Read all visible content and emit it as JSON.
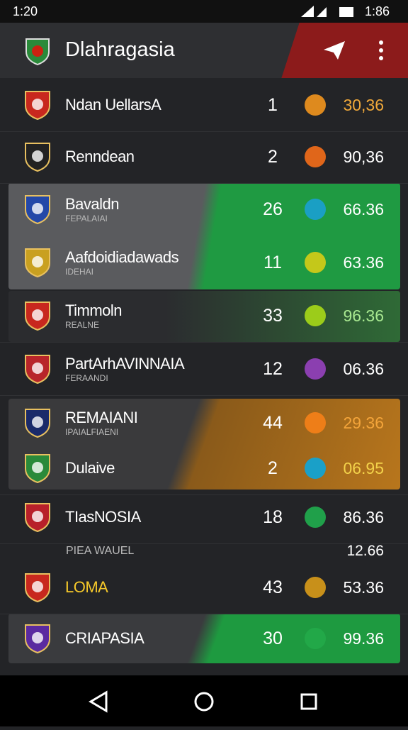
{
  "status_bar": {
    "time_left": "1:20",
    "time_right": "1:86"
  },
  "app_bar": {
    "title": "Dlahragasia"
  },
  "rows": [
    {
      "name": "Ndan UellarsA",
      "rank": "1",
      "score": "30,36"
    },
    {
      "name": "Renndean",
      "rank": "2",
      "score": "90,36"
    },
    {
      "name": "Bavaldn",
      "sub": "FEPALAIAI",
      "rank": "26",
      "score": "66.36"
    },
    {
      "name": "Aafdoidiadawads",
      "sub": "IDEHAI",
      "rank": "11",
      "score": "63.36"
    },
    {
      "name": "Timmoln",
      "sub": "REALNE",
      "rank": "33",
      "score": "96.36"
    },
    {
      "name": "PartArhAVINNAIA",
      "sub": "FERAANDI",
      "rank": "12",
      "score": "06.36"
    },
    {
      "name": "REMAIANI",
      "sub": "IPAIALFIAENI",
      "rank": "44",
      "score": "29.36"
    },
    {
      "name": "Dulaive",
      "rank": "2",
      "score": "06.95"
    },
    {
      "name": "TIasNOSIA",
      "rank": "18",
      "score": "86.36"
    },
    {
      "name": "LOMA",
      "rank": "43",
      "score": "53.36"
    },
    {
      "name": "CRIAPASIA",
      "rank": "30",
      "score": "99.36"
    }
  ],
  "note": {
    "label": "PIEA WAUEL",
    "score": "12.66"
  }
}
